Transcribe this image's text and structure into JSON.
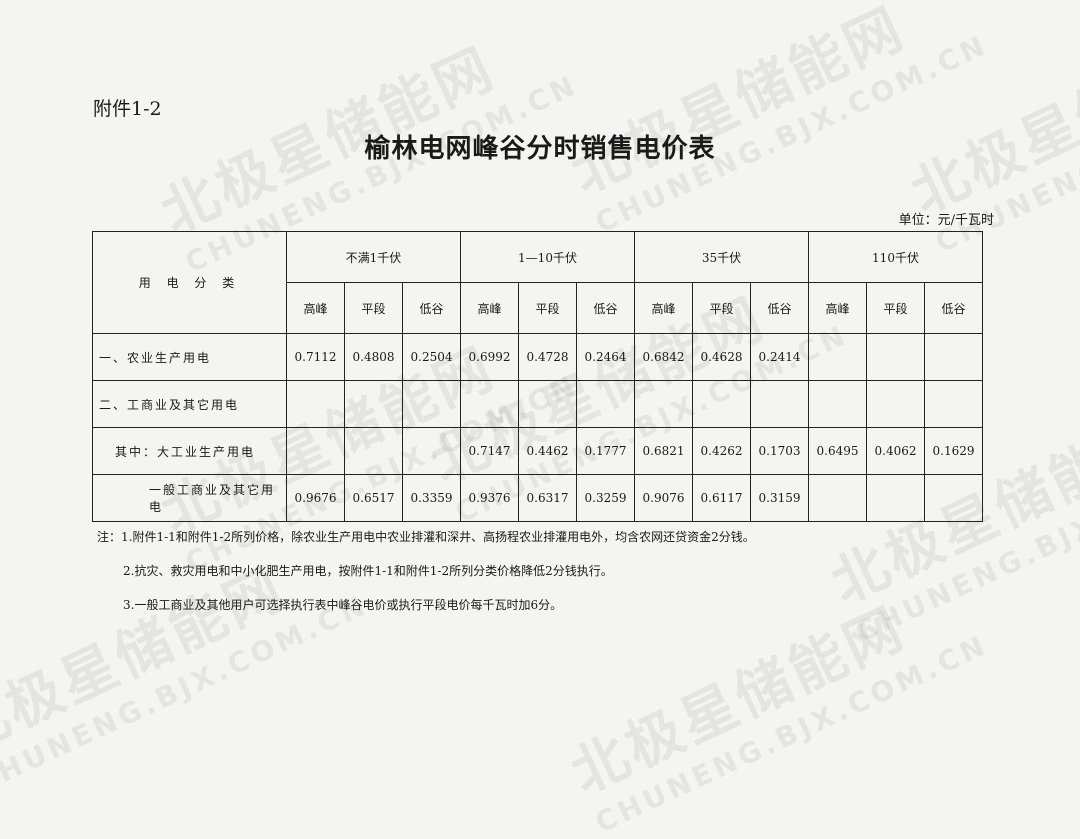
{
  "watermark": {
    "cn": "北极星储能网",
    "en": "CHUNENG.BJX.COM.CN"
  },
  "attachment": "附件1-2",
  "title": "榆林电网峰谷分时销售电价表",
  "unit": "单位：元/千瓦时",
  "table": {
    "category_header": "用 电 分 类",
    "voltage_groups": [
      "不满1千伏",
      "1—10千伏",
      "35千伏",
      "110千伏"
    ],
    "periods": [
      "高峰",
      "平段",
      "低谷"
    ],
    "rows": [
      {
        "label": "一、农业生产用电",
        "values": [
          "0.7112",
          "0.4808",
          "0.2504",
          "0.6992",
          "0.4728",
          "0.2464",
          "0.6842",
          "0.4628",
          "0.2414",
          "",
          "",
          ""
        ]
      },
      {
        "label": "二、工商业及其它用电",
        "values": [
          "",
          "",
          "",
          "",
          "",
          "",
          "",
          "",
          "",
          "",
          "",
          ""
        ]
      },
      {
        "label": "其中：大工业生产用电",
        "values": [
          "",
          "",
          "",
          "0.7147",
          "0.4462",
          "0.1777",
          "0.6821",
          "0.4262",
          "0.1703",
          "0.6495",
          "0.4062",
          "0.1629"
        ]
      },
      {
        "label": "一般工商业及其它用电",
        "values": [
          "0.9676",
          "0.6517",
          "0.3359",
          "0.9376",
          "0.6317",
          "0.3259",
          "0.9076",
          "0.6117",
          "0.3159",
          "",
          "",
          ""
        ]
      }
    ]
  },
  "notes": [
    "注：1.附件1-1和附件1-2所列价格，除农业生产用电中农业排灌和深井、高扬程农业排灌用电外，均含农网还贷资金2分钱。",
    "2.抗灾、救灾用电和中小化肥生产用电，按附件1-1和附件1-2所列分类价格降低2分钱执行。",
    "3.一般工商业及其他用户可选择执行表中峰谷电价或执行平段电价每千瓦时加6分。"
  ]
}
